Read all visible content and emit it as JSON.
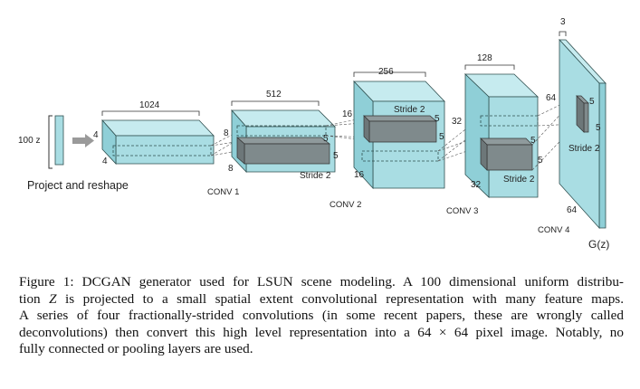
{
  "figure": {
    "input_label": "100 z",
    "project_label": "Project and reshape",
    "stages": [
      {
        "name": "",
        "width_label": "1024",
        "h_label": "4",
        "d_label": "4",
        "stride": "",
        "kernel": ""
      },
      {
        "name": "CONV 1",
        "width_label": "512",
        "h_label": "8",
        "d_label": "8",
        "stride": "Stride 2",
        "kernel": "5"
      },
      {
        "name": "CONV 2",
        "width_label": "256",
        "h_label": "16",
        "d_label": "16",
        "stride": "Stride 2",
        "kernel": "5"
      },
      {
        "name": "CONV 3",
        "width_label": "128",
        "h_label": "32",
        "d_label": "32",
        "stride": "Stride 2",
        "kernel": "5"
      },
      {
        "name": "CONV 4",
        "width_label": "3",
        "h_label": "64",
        "d_label": "64",
        "stride": "Stride 2",
        "kernel": "5"
      }
    ],
    "output_label": "G(z)"
  },
  "caption": {
    "line1": "Figure 1: DCGAN generator used for LSUN scene modeling. A 100 dimensional uniform distribu-",
    "line2_pre": "tion ",
    "line2_var": "Z",
    "line2_post": " is projected to a small spatial extent convolutional representation with many feature maps.",
    "line3": "A series of four fractionally-strided convolutions (in some recent papers, these are wrongly called",
    "line4_pre": "deconvolutions) then convert this high level representation into a ",
    "line4_math": "64 × 64",
    "line4_post": " pixel image. Notably, no",
    "line5": "fully connected or pooling layers are used."
  },
  "colors": {
    "block_fill": "#a9dde3",
    "block_edge": "#2f4f4f",
    "kernel_fill": "#7f8a8c"
  }
}
